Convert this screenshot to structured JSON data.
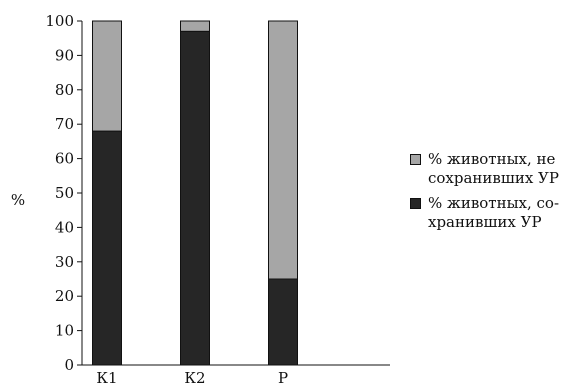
{
  "chart_data": {
    "type": "bar",
    "stacked": true,
    "categories": [
      "К1",
      "К2",
      "Р"
    ],
    "series": [
      {
        "name": "% животных, со-хранивших УР",
        "values": [
          68,
          97,
          25
        ],
        "color": "#262626"
      },
      {
        "name": "% животных, не сохранивших УР",
        "values": [
          32,
          3,
          75
        ],
        "color": "#a6a6a6"
      }
    ],
    "ylabel": "%",
    "xlabel": "",
    "ylim": [
      0,
      100
    ],
    "yticks": [
      0,
      10,
      20,
      30,
      40,
      50,
      60,
      70,
      80,
      90,
      100
    ],
    "grid": false,
    "legend_position": "right"
  },
  "legend": [
    {
      "lines": [
        "% животных, не",
        "сохранивших УР"
      ],
      "color": "#a6a6a6"
    },
    {
      "lines": [
        "% животных, со-",
        "хранивших УР"
      ],
      "color": "#262626"
    }
  ]
}
